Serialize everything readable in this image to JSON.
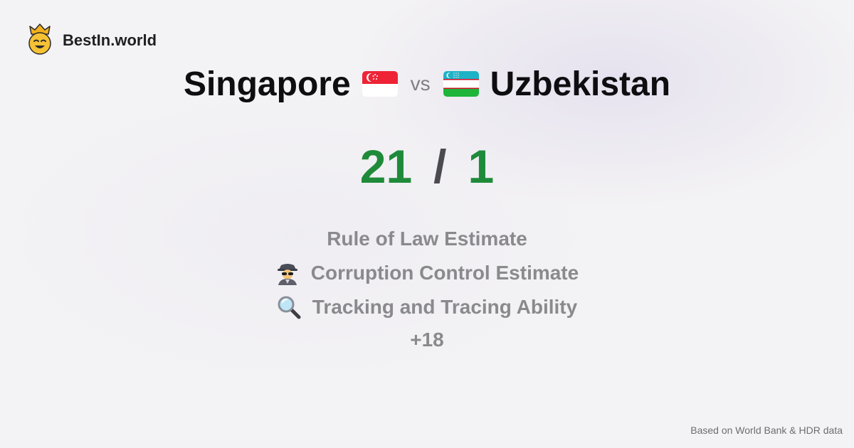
{
  "brand": {
    "name": "BestIn.world",
    "logo_icon": "crown-smiley-icon"
  },
  "title": {
    "country_a": "Singapore",
    "flag_a": "singapore-flag-icon",
    "vs": "vs",
    "country_b": "Uzbekistan",
    "flag_b": "uzbekistan-flag-icon"
  },
  "score": {
    "a": "21",
    "separator": "/",
    "b": "1"
  },
  "metrics": [
    {
      "label": "Rule of Law Estimate",
      "icon": ""
    },
    {
      "label": "Corruption Control Estimate",
      "icon": "detective-icon"
    },
    {
      "label": "Tracking and Tracing Ability",
      "icon": "magnifying-glass-icon"
    }
  ],
  "more": "+18",
  "footer": "Based on World Bank & HDR data",
  "colors": {
    "score": "#1f8b3a",
    "metric_text": "#8a8a8e",
    "background": "#f3f2f4"
  }
}
